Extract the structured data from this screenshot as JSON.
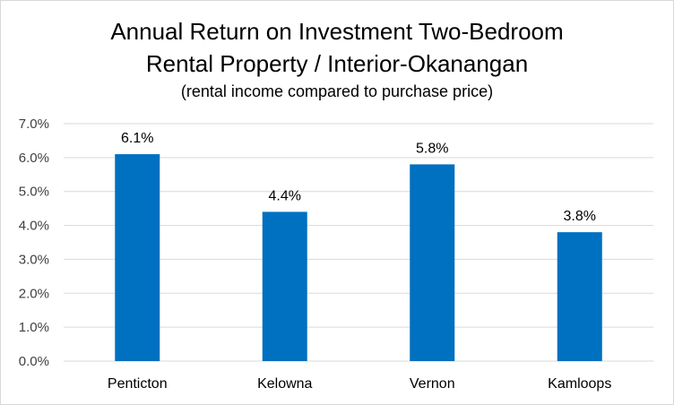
{
  "chart_data": {
    "type": "bar",
    "title": "Annual Return on Investment Two-Bedroom",
    "title_line2": "Rental Property / Interior-Okanangan",
    "subtitle": "(rental income compared to purchase price)",
    "categories": [
      "Penticton",
      "Kelowna",
      "Vernon",
      "Kamloops"
    ],
    "values": [
      6.1,
      4.4,
      5.8,
      3.8
    ],
    "data_labels": [
      "6.1%",
      "4.4%",
      "5.8%",
      "3.8%"
    ],
    "xlabel": "",
    "ylabel": "",
    "ylim": [
      0,
      7
    ],
    "yticks": [
      0,
      1,
      2,
      3,
      4,
      5,
      6,
      7
    ],
    "ytick_labels": [
      "0.0%",
      "1.0%",
      "2.0%",
      "3.0%",
      "4.0%",
      "5.0%",
      "6.0%",
      "7.0%"
    ],
    "grid": true,
    "legend": "none",
    "bar_color": "#0070C0",
    "grid_color": "#d9d9d9"
  }
}
